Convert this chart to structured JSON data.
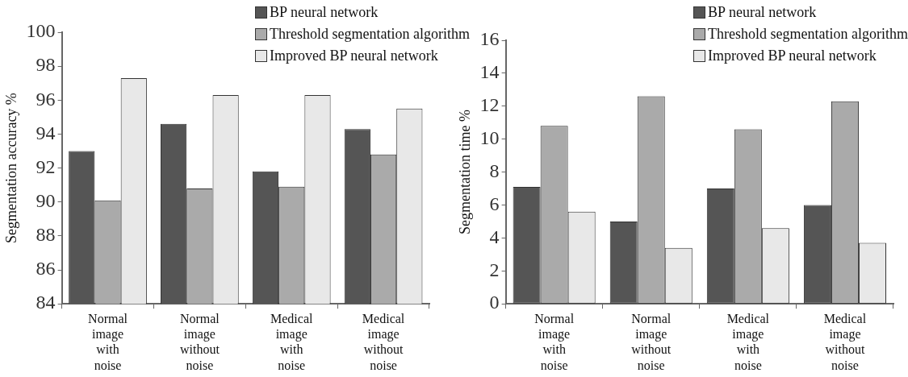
{
  "chart_data": [
    {
      "type": "bar",
      "ylabel": "Segmentation accuracy %",
      "categories": [
        "Normal image with noise",
        "Normal image without noise",
        "Medical image with noise",
        "Medical image without noise"
      ],
      "series": [
        {
          "name": "BP neural network",
          "color": "#555555",
          "values": [
            93.0,
            94.6,
            91.8,
            94.3
          ]
        },
        {
          "name": "Threshold segmentation algorithm",
          "color": "#aaaaaa",
          "values": [
            90.1,
            90.8,
            90.9,
            92.8
          ]
        },
        {
          "name": "Improved BP neural network",
          "color": "#e8e8e8",
          "values": [
            97.3,
            96.3,
            96.3,
            95.5
          ]
        }
      ],
      "ylim": [
        84,
        100
      ],
      "yticks": [
        84,
        86,
        88,
        90,
        92,
        94,
        96,
        98,
        100
      ],
      "grid": false,
      "legend": "top right"
    },
    {
      "type": "bar",
      "ylabel": "Segmentation time %",
      "categories": [
        "Normal image with noise",
        "Normal image without noise",
        "Medical image with noise",
        "Medical image without noise"
      ],
      "series": [
        {
          "name": "BP neural network",
          "color": "#555555",
          "values": [
            7.1,
            5.0,
            7.0,
            6.0
          ]
        },
        {
          "name": "Threshold segmentation algorithm",
          "color": "#aaaaaa",
          "values": [
            10.8,
            12.6,
            10.6,
            12.3
          ]
        },
        {
          "name": "Improved BP neural network",
          "color": "#e8e8e8",
          "values": [
            5.6,
            3.4,
            4.6,
            3.7
          ]
        }
      ],
      "ylim": [
        0,
        16
      ],
      "yticks": [
        0,
        2,
        4,
        6,
        8,
        10,
        12,
        14,
        16
      ],
      "grid": false,
      "legend": "top right"
    }
  ]
}
